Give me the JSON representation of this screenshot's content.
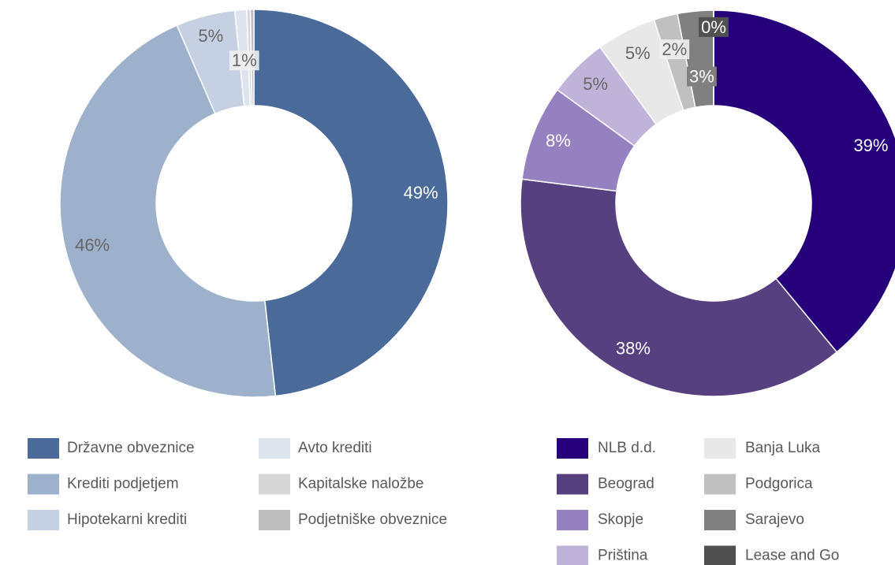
{
  "chart_data": [
    {
      "type": "pie",
      "categories": [
        "Državne obveznice",
        "Krediti podjetjem",
        "Hipotekarni krediti",
        "Avto krediti",
        "Kapitalske naložbe",
        "Podjetniške obveznice"
      ],
      "values": [
        49,
        46,
        5,
        1,
        0.3,
        0.3
      ],
      "value_labels": [
        "49%",
        "46%",
        "5%",
        "1%",
        null,
        null
      ],
      "colors": [
        "#4a6a9a",
        "#9db0cc",
        "#c5d1e3",
        "#dde4ee",
        "#d6d6d6",
        "#bdbdbd"
      ]
    },
    {
      "type": "pie",
      "categories": [
        "NLB d.d.",
        "Beograd",
        "Skopje",
        "Priština",
        "Banja Luka",
        "Podgorica",
        "Sarajevo",
        "Lease and Go"
      ],
      "values": [
        39,
        38,
        8,
        5,
        5,
        2,
        3,
        0
      ],
      "value_labels": [
        "39%",
        "38%",
        "8%",
        "5%",
        "5%",
        "2%",
        "3%",
        "0%"
      ],
      "colors": [
        "#26007a",
        "#574080",
        "#9580c0",
        "#c0b3da",
        "#e8e8e8",
        "#c0c0c0",
        "#808080",
        "#505050"
      ]
    }
  ]
}
